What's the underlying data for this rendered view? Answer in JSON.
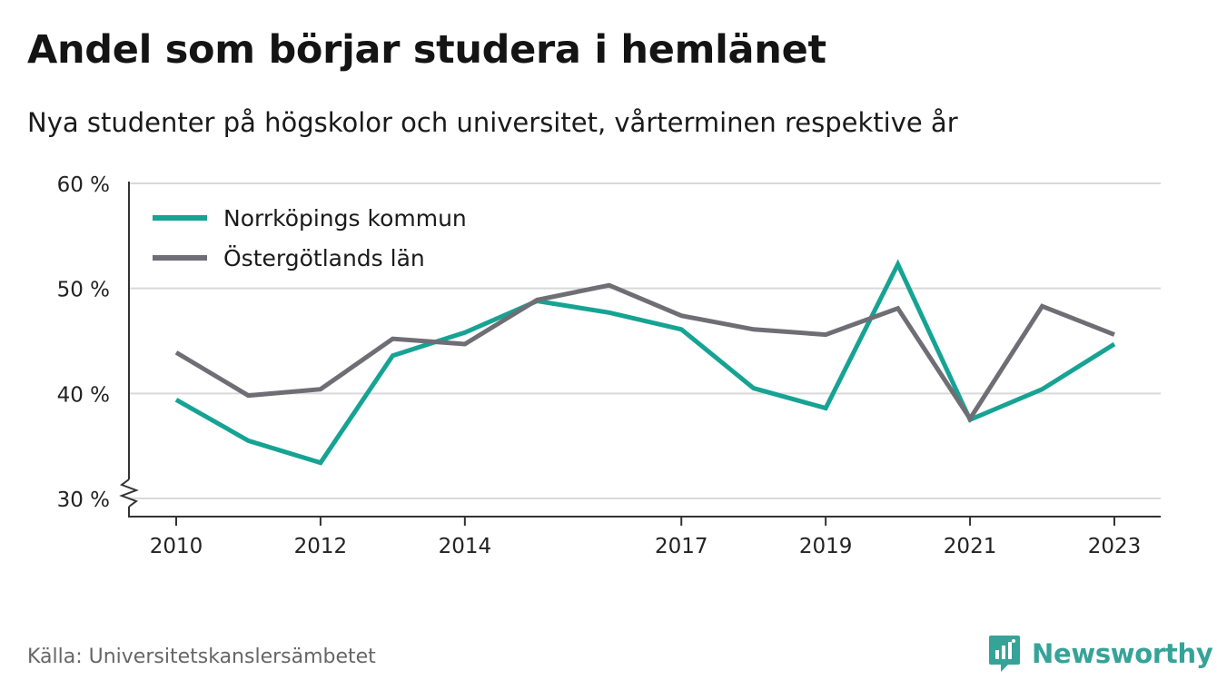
{
  "header": {
    "title": "Andel som börjar studera i hemlänet",
    "subtitle": "Nya studenter på högskolor och universitet, vårterminen respektive år"
  },
  "footer": {
    "source": "Källa: Universitetskanslersämbetet",
    "brand": "Newsworthy"
  },
  "colors": {
    "norrkoping": "#16a394",
    "ostergotland": "#6f6e75",
    "grid": "#d9d9d9",
    "axis": "#333333",
    "brand": "#35a398"
  },
  "chart_data": {
    "type": "line",
    "x": [
      2010,
      2011,
      2012,
      2013,
      2014,
      2015,
      2016,
      2017,
      2018,
      2019,
      2020,
      2021,
      2022,
      2023
    ],
    "x_tick_labels": [
      "2010",
      "2012",
      "2014",
      "2017",
      "2019",
      "2021",
      "2023"
    ],
    "y_tick_labels": [
      "30 %",
      "40 %",
      "50 %",
      "60 %"
    ],
    "y_ticks": [
      30,
      40,
      50,
      60
    ],
    "ylim": [
      30,
      60
    ],
    "y_axis_break": true,
    "grid": true,
    "legend_position": "top-left",
    "series": [
      {
        "name": "Norrköpings kommun",
        "color": "#16a394",
        "values": [
          39.4,
          35.5,
          33.4,
          43.6,
          45.8,
          48.8,
          47.7,
          46.1,
          40.5,
          38.6,
          52.3,
          37.5,
          40.4,
          44.7
        ]
      },
      {
        "name": "Östergötlands län",
        "color": "#6f6e75",
        "values": [
          43.9,
          39.8,
          40.4,
          45.2,
          44.7,
          48.9,
          50.3,
          47.4,
          46.1,
          45.6,
          48.1,
          37.6,
          48.3,
          45.6
        ]
      }
    ]
  }
}
